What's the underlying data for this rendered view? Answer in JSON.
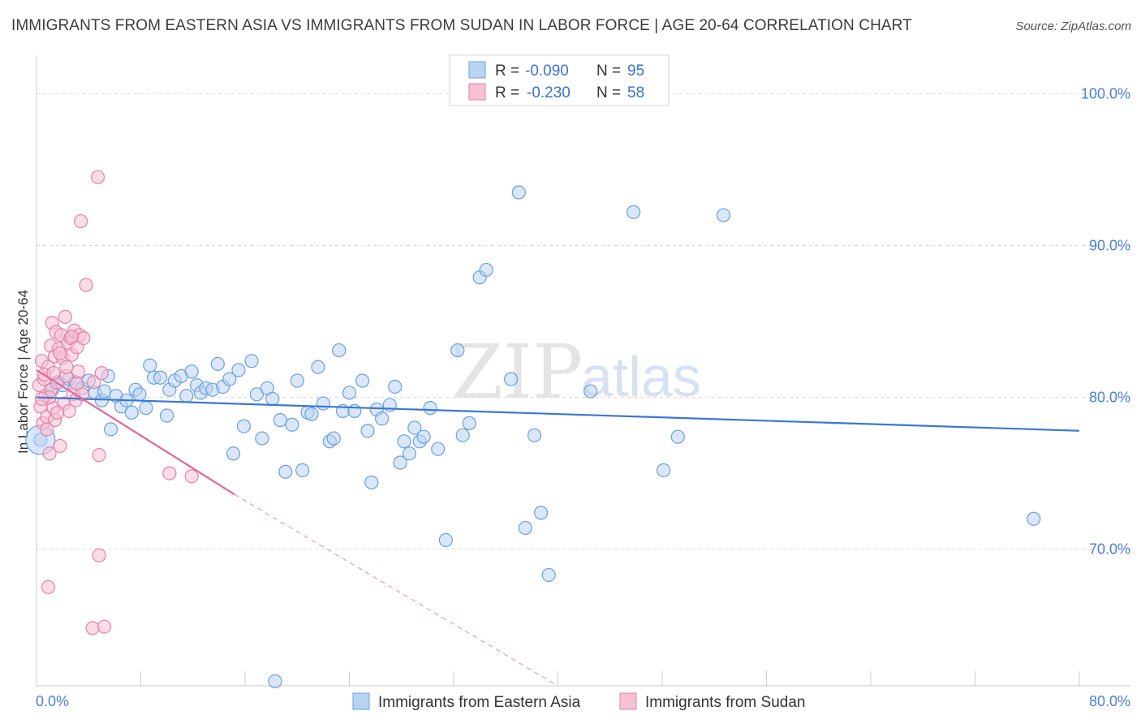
{
  "title": "IMMIGRANTS FROM EASTERN ASIA VS IMMIGRANTS FROM SUDAN IN LABOR FORCE | AGE 20-64 CORRELATION CHART",
  "source": "Source: ZipAtlas.com",
  "watermark": {
    "zip": "ZIP",
    "atlas": "atlas"
  },
  "chart_data": {
    "type": "scatter",
    "xlabel": "",
    "ylabel": "In Labor Force | Age 20-64",
    "xlim": [
      0,
      80
    ],
    "ylim": [
      61,
      102
    ],
    "x_tick_labels": [
      {
        "v": 0,
        "label": "0.0%"
      },
      {
        "v": 80,
        "label": "80.0%"
      }
    ],
    "y_tick_labels": [
      {
        "v": 100,
        "label": "100.0%"
      },
      {
        "v": 90,
        "label": "90.0%"
      },
      {
        "v": 80,
        "label": "80.0%"
      },
      {
        "v": 70,
        "label": "70.0%"
      }
    ],
    "legend": {
      "rows": [
        {
          "r_label": "R = ",
          "r_value": "-0.090",
          "n_label": "N = ",
          "n_value": "95"
        },
        {
          "r_label": "R = ",
          "r_value": "-0.230",
          "n_label": "N = ",
          "n_value": "58"
        }
      ]
    },
    "series": [
      {
        "name": "Immigrants from Eastern Asia",
        "color": "#6a9fe0",
        "fill": "#b9d3f3",
        "trend": {
          "x0": 0,
          "y0": 80.0,
          "x1": 80,
          "y1": 77.8
        },
        "points": [
          [
            0.3,
            77.2
          ],
          [
            1.2,
            80.5
          ],
          [
            1.5,
            80.9
          ],
          [
            2.0,
            80.8
          ],
          [
            2.5,
            81.2
          ],
          [
            3.0,
            81.0
          ],
          [
            3.5,
            80.6
          ],
          [
            4.0,
            81.1
          ],
          [
            4.5,
            80.3
          ],
          [
            5.0,
            79.8
          ],
          [
            5.2,
            80.4
          ],
          [
            5.5,
            81.4
          ],
          [
            5.7,
            77.9
          ],
          [
            6.1,
            80.1
          ],
          [
            6.5,
            79.4
          ],
          [
            6.9,
            79.8
          ],
          [
            7.3,
            79.0
          ],
          [
            7.6,
            80.5
          ],
          [
            7.9,
            80.2
          ],
          [
            8.4,
            79.3
          ],
          [
            8.7,
            82.1
          ],
          [
            9.0,
            81.3
          ],
          [
            9.5,
            81.3
          ],
          [
            10.0,
            78.8
          ],
          [
            10.2,
            80.5
          ],
          [
            10.6,
            81.1
          ],
          [
            11.1,
            81.4
          ],
          [
            11.5,
            80.1
          ],
          [
            11.9,
            81.7
          ],
          [
            12.3,
            80.8
          ],
          [
            12.6,
            80.3
          ],
          [
            13.0,
            80.6
          ],
          [
            13.5,
            80.5
          ],
          [
            13.9,
            82.2
          ],
          [
            14.3,
            80.7
          ],
          [
            14.8,
            81.2
          ],
          [
            15.1,
            76.3
          ],
          [
            15.5,
            81.8
          ],
          [
            15.9,
            78.1
          ],
          [
            16.5,
            82.4
          ],
          [
            16.9,
            80.2
          ],
          [
            17.3,
            77.3
          ],
          [
            17.7,
            80.6
          ],
          [
            18.1,
            79.9
          ],
          [
            18.7,
            78.5
          ],
          [
            19.1,
            75.1
          ],
          [
            19.6,
            78.2
          ],
          [
            20.0,
            81.1
          ],
          [
            20.4,
            75.2
          ],
          [
            20.8,
            79.0
          ],
          [
            21.1,
            78.9
          ],
          [
            21.6,
            82.0
          ],
          [
            22.0,
            79.6
          ],
          [
            22.5,
            77.1
          ],
          [
            22.8,
            77.3
          ],
          [
            23.2,
            83.1
          ],
          [
            23.5,
            79.1
          ],
          [
            24.0,
            80.3
          ],
          [
            24.4,
            79.1
          ],
          [
            25.0,
            81.1
          ],
          [
            25.4,
            77.8
          ],
          [
            25.7,
            74.4
          ],
          [
            26.1,
            79.2
          ],
          [
            26.5,
            78.6
          ],
          [
            27.1,
            79.5
          ],
          [
            27.5,
            80.7
          ],
          [
            27.9,
            75.7
          ],
          [
            28.2,
            77.1
          ],
          [
            28.6,
            76.3
          ],
          [
            29.0,
            78.0
          ],
          [
            29.4,
            77.1
          ],
          [
            29.7,
            77.4
          ],
          [
            30.2,
            79.3
          ],
          [
            30.8,
            76.6
          ],
          [
            31.4,
            70.6
          ],
          [
            32.3,
            83.1
          ],
          [
            32.7,
            77.5
          ],
          [
            33.2,
            78.3
          ],
          [
            34.0,
            87.9
          ],
          [
            34.5,
            88.4
          ],
          [
            36.4,
            81.2
          ],
          [
            37.0,
            93.5
          ],
          [
            37.5,
            71.4
          ],
          [
            38.2,
            77.5
          ],
          [
            38.7,
            72.4
          ],
          [
            39.3,
            68.3
          ],
          [
            42.5,
            80.4
          ],
          [
            45.8,
            92.2
          ],
          [
            48.1,
            75.2
          ],
          [
            49.2,
            77.4
          ],
          [
            52.7,
            92.0
          ],
          [
            76.5,
            72.0
          ],
          [
            18.3,
            61.3
          ]
        ]
      },
      {
        "name": "Immigrants from Sudan",
        "color": "#e880a8",
        "fill": "#f6c1d4",
        "trend": {
          "x0": 0,
          "y0": 81.8,
          "x1": 15.2,
          "y1": 73.6
        },
        "trend_dashed": {
          "x0": 15.2,
          "y0": 73.6,
          "x1": 40.0,
          "y1": 61.0
        },
        "points": [
          [
            0.2,
            80.8
          ],
          [
            0.3,
            79.4
          ],
          [
            0.4,
            82.4
          ],
          [
            0.5,
            78.3
          ],
          [
            0.6,
            81.2
          ],
          [
            0.7,
            80.1
          ],
          [
            0.8,
            78.7
          ],
          [
            0.9,
            82.0
          ],
          [
            1.0,
            76.3
          ],
          [
            1.1,
            83.4
          ],
          [
            1.1,
            80.5
          ],
          [
            1.2,
            84.9
          ],
          [
            1.3,
            79.3
          ],
          [
            1.4,
            82.7
          ],
          [
            1.4,
            78.5
          ],
          [
            1.5,
            84.3
          ],
          [
            1.6,
            81.0
          ],
          [
            1.7,
            83.2
          ],
          [
            1.8,
            76.8
          ],
          [
            1.9,
            84.1
          ],
          [
            2.0,
            82.6
          ],
          [
            2.1,
            79.6
          ],
          [
            2.2,
            85.3
          ],
          [
            2.3,
            81.4
          ],
          [
            2.4,
            83.6
          ],
          [
            2.5,
            79.1
          ],
          [
            2.6,
            83.9
          ],
          [
            2.7,
            82.8
          ],
          [
            2.8,
            80.2
          ],
          [
            2.9,
            84.4
          ],
          [
            3.0,
            79.8
          ],
          [
            3.1,
            83.3
          ],
          [
            3.2,
            81.7
          ],
          [
            3.3,
            84.1
          ],
          [
            3.4,
            91.6
          ],
          [
            3.5,
            80.2
          ],
          [
            3.6,
            83.9
          ],
          [
            3.8,
            87.4
          ],
          [
            0.9,
            67.5
          ],
          [
            4.4,
            81.0
          ],
          [
            4.7,
            94.5
          ],
          [
            4.3,
            64.8
          ],
          [
            5.2,
            64.9
          ],
          [
            4.8,
            69.6
          ],
          [
            4.8,
            76.2
          ],
          [
            5.0,
            81.6
          ],
          [
            10.2,
            75.0
          ],
          [
            11.9,
            74.8
          ],
          [
            0.6,
            81.5
          ],
          [
            1.0,
            80.0
          ],
          [
            1.6,
            79.0
          ],
          [
            2.3,
            82.0
          ],
          [
            0.4,
            79.9
          ],
          [
            1.8,
            82.9
          ],
          [
            2.7,
            84.0
          ],
          [
            3.1,
            80.9
          ],
          [
            0.8,
            77.9
          ],
          [
            1.3,
            81.6
          ]
        ]
      }
    ]
  }
}
